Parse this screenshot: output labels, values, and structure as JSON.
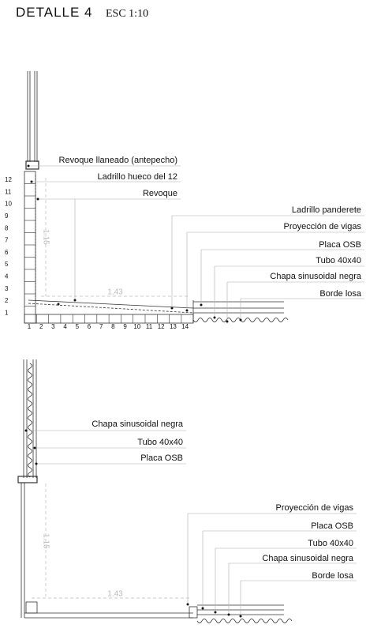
{
  "header": {
    "title": "DETALLE 4",
    "scale": "ESC 1:10"
  },
  "detail_top": {
    "labels": [
      "Revoque llaneado (antepecho)",
      "Ladrillo hueco del 12",
      "Revoque",
      "Ladrillo panderete",
      "Proyección de vigas",
      "Placa OSB",
      "Tubo 40x40",
      "Chapa sinusoidal negra",
      "Borde losa"
    ],
    "row_numbers": [
      "12",
      "11",
      "10",
      "9",
      "8",
      "7",
      "6",
      "5",
      "4",
      "3",
      "2",
      "1"
    ],
    "column_numbers": [
      "1",
      "2",
      "3",
      "4",
      "5",
      "6",
      "7",
      "8",
      "9",
      "10",
      "11",
      "12",
      "13",
      "14"
    ],
    "dimensions": {
      "height": "1.15",
      "width": "1.43"
    }
  },
  "detail_bottom": {
    "labels": [
      "Chapa sinusoidal negra",
      "Tubo 40x40",
      "Placa OSB",
      "Proyección de vigas",
      "Placa OSB",
      "Tubo 40x40",
      "Chapa sinusoidal negra",
      "Borde losa"
    ],
    "dimensions": {
      "height": "1.15",
      "width": "1.43"
    }
  }
}
